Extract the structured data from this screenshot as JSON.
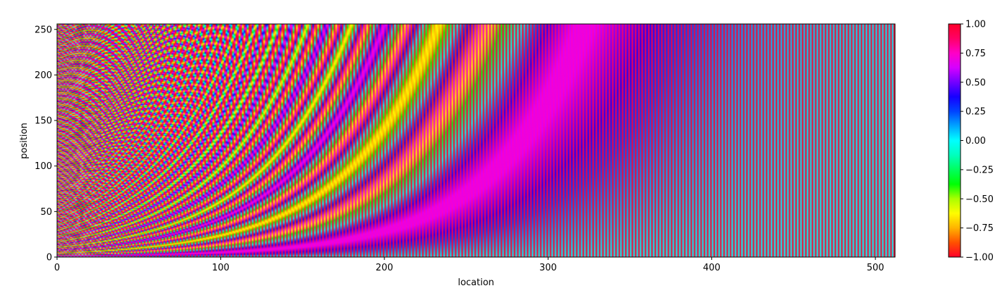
{
  "chart_data": {
    "type": "heatmap",
    "title": "",
    "xlabel": "location",
    "ylabel": "position",
    "xlim": [
      0,
      512
    ],
    "ylim": [
      0,
      256
    ],
    "x_ticks": [
      0,
      100,
      200,
      300,
      400,
      500
    ],
    "y_ticks": [
      0,
      50,
      100,
      150,
      200,
      250
    ],
    "x_tick_labels": [
      "0",
      "100",
      "200",
      "300",
      "400",
      "500"
    ],
    "y_tick_labels": [
      "0",
      "50",
      "100",
      "150",
      "200",
      "250"
    ],
    "rows": 256,
    "columns": 512,
    "value_function": "sinusoidal positional encoding: even column i -> sin(pos / 10000^(i/512)), odd column i -> cos(pos / 10000^((i-1)/512))",
    "colormap": "gist_rainbow (reversed)",
    "colormap_stops": [
      "#ff0029",
      "#ff5100",
      "#ffb300",
      "#fffc00",
      "#aaff00",
      "#00ff04",
      "#00ff5e",
      "#00ffbd",
      "#00ffff",
      "#00a5ff",
      "#0044ff",
      "#1600ff",
      "#7400ff",
      "#d600ff",
      "#ff00c6",
      "#ff0066",
      "#ff0029"
    ],
    "colorbar": {
      "vmin": -1.0,
      "vmax": 1.0,
      "ticks": [
        -1.0,
        -0.75,
        -0.5,
        -0.25,
        0.0,
        0.25,
        0.5,
        0.75,
        1.0
      ],
      "tick_labels": [
        "−1.00",
        "−0.75",
        "−0.50",
        "−0.25",
        "0.00",
        "0.25",
        "0.50",
        "0.75",
        "1.00"
      ]
    },
    "grid": false,
    "legend": "colorbar-right"
  }
}
